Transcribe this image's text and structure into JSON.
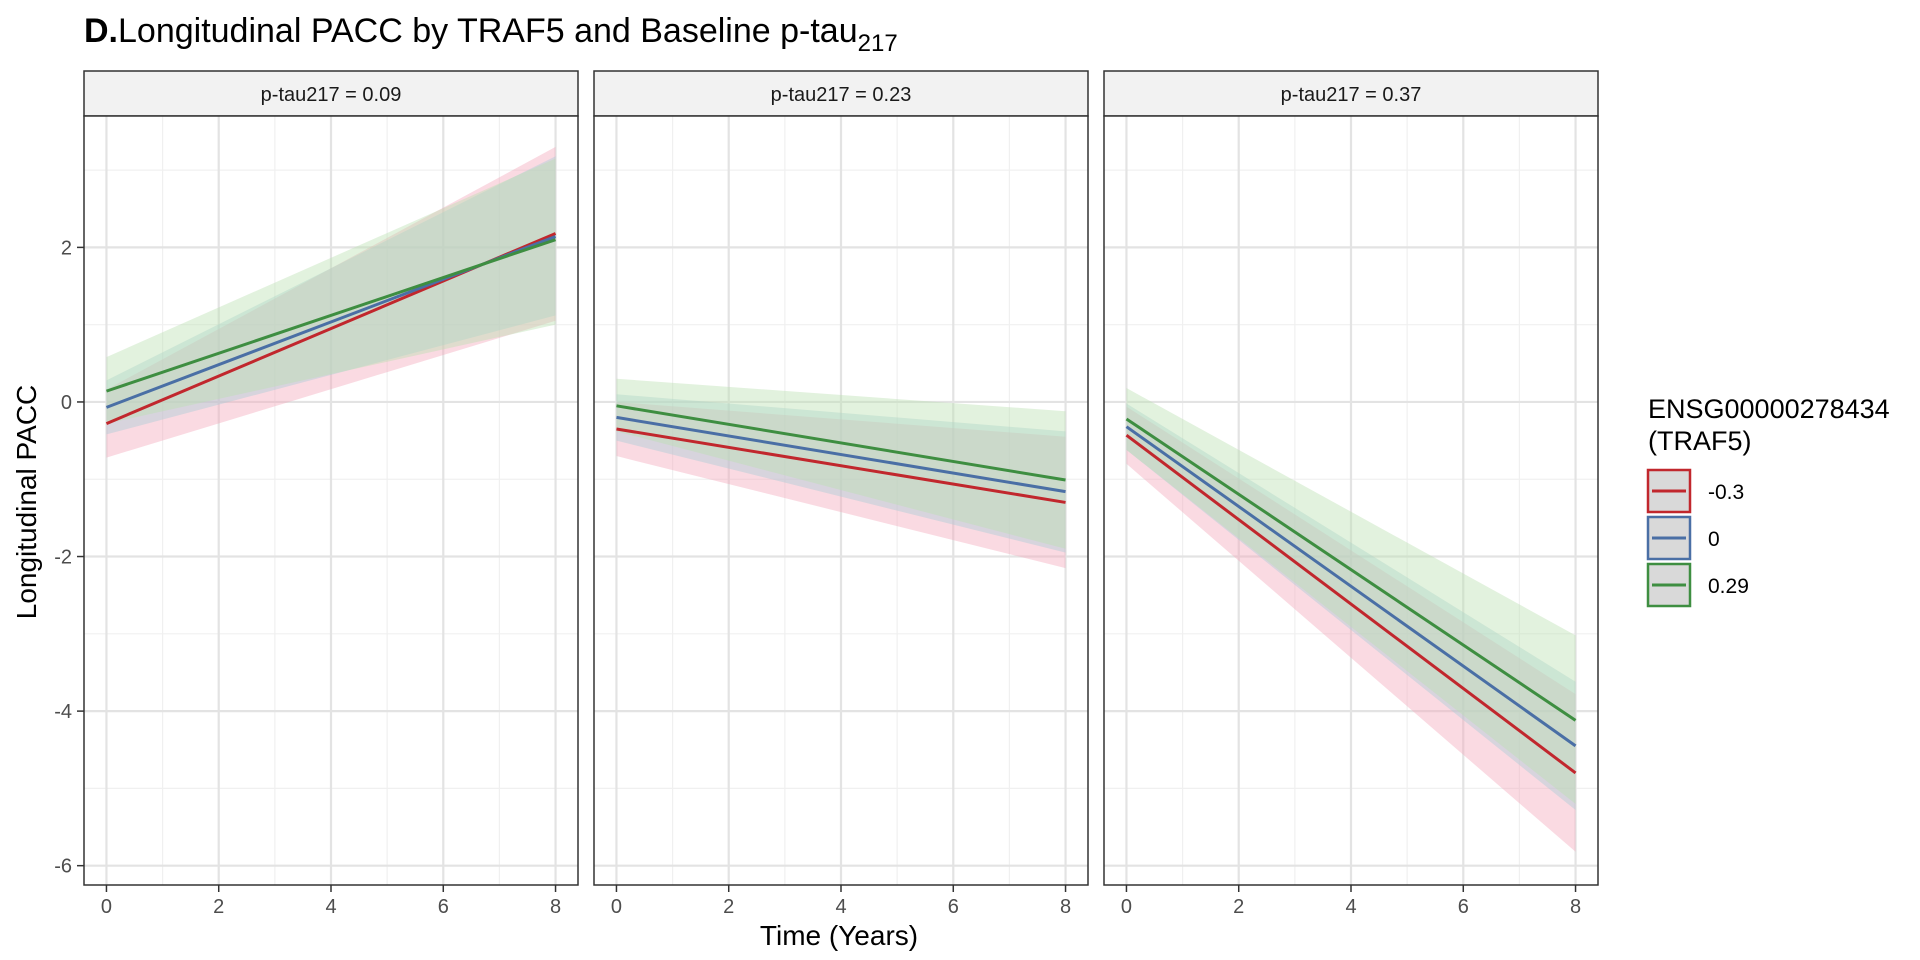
{
  "chart_data": {
    "type": "line",
    "title": {
      "bold_prefix": "D.",
      "text": "Longitudinal PACC by TRAF5 and Baseline p-tau",
      "subscript": "217"
    },
    "xlabel": "Time (Years)",
    "ylabel": "Longitudinal PACC",
    "xlim": [
      -0.4,
      8.4
    ],
    "ylim": [
      -6.25,
      3.7
    ],
    "xticks": [
      0,
      2,
      4,
      6,
      8
    ],
    "xtick_labels": [
      "0",
      "2",
      "4",
      "6",
      "8"
    ],
    "yticks": [
      -6,
      -4,
      -2,
      0,
      2
    ],
    "ytick_labels": [
      "-6",
      "-4",
      "-2",
      "0",
      "2"
    ],
    "grid": true,
    "legend": {
      "title_lines": [
        "ENSG00000278434",
        "(TRAF5)"
      ],
      "position": "right",
      "entries": [
        {
          "label": "-0.3",
          "color": "#c1272d",
          "fill": "#f4a7b9"
        },
        {
          "label": "0",
          "color": "#4a6fa5",
          "fill": "#a8cdd7"
        },
        {
          "label": "0.29",
          "color": "#3e8e41",
          "fill": "#b9dfb0"
        }
      ]
    },
    "panels": [
      {
        "strip": "p-tau217 = 0.09",
        "series": [
          {
            "name": "-0.3",
            "x": [
              0,
              8
            ],
            "y": [
              -0.28,
              2.18
            ],
            "lower": [
              -0.72,
              1.05
            ],
            "upper": [
              0.16,
              3.3
            ]
          },
          {
            "name": "0",
            "x": [
              0,
              8
            ],
            "y": [
              -0.07,
              2.14
            ],
            "lower": [
              -0.42,
              1.12
            ],
            "upper": [
              0.28,
              3.18
            ]
          },
          {
            "name": "0.29",
            "x": [
              0,
              8
            ],
            "y": [
              0.14,
              2.1
            ],
            "lower": [
              -0.28,
              1.0
            ],
            "upper": [
              0.58,
              3.15
            ]
          }
        ]
      },
      {
        "strip": "p-tau217 = 0.23",
        "series": [
          {
            "name": "-0.3",
            "x": [
              0,
              8
            ],
            "y": [
              -0.35,
              -1.3
            ],
            "lower": [
              -0.7,
              -2.15
            ],
            "upper": [
              0.0,
              -0.45
            ]
          },
          {
            "name": "0",
            "x": [
              0,
              8
            ],
            "y": [
              -0.2,
              -1.16
            ],
            "lower": [
              -0.5,
              -1.95
            ],
            "upper": [
              0.1,
              -0.38
            ]
          },
          {
            "name": "0.29",
            "x": [
              0,
              8
            ],
            "y": [
              -0.05,
              -1.01
            ],
            "lower": [
              -0.38,
              -1.9
            ],
            "upper": [
              0.3,
              -0.12
            ]
          }
        ]
      },
      {
        "strip": "p-tau217 = 0.37",
        "series": [
          {
            "name": "-0.3",
            "x": [
              0,
              8
            ],
            "y": [
              -0.43,
              -4.8
            ],
            "lower": [
              -0.8,
              -5.82
            ],
            "upper": [
              -0.06,
              -3.78
            ]
          },
          {
            "name": "0",
            "x": [
              0,
              8
            ],
            "y": [
              -0.32,
              -4.45
            ],
            "lower": [
              -0.62,
              -5.28
            ],
            "upper": [
              -0.02,
              -3.62
            ]
          },
          {
            "name": "0.29",
            "x": [
              0,
              8
            ],
            "y": [
              -0.22,
              -4.12
            ],
            "lower": [
              -0.62,
              -5.2
            ],
            "upper": [
              0.18,
              -3.02
            ]
          }
        ]
      }
    ]
  }
}
